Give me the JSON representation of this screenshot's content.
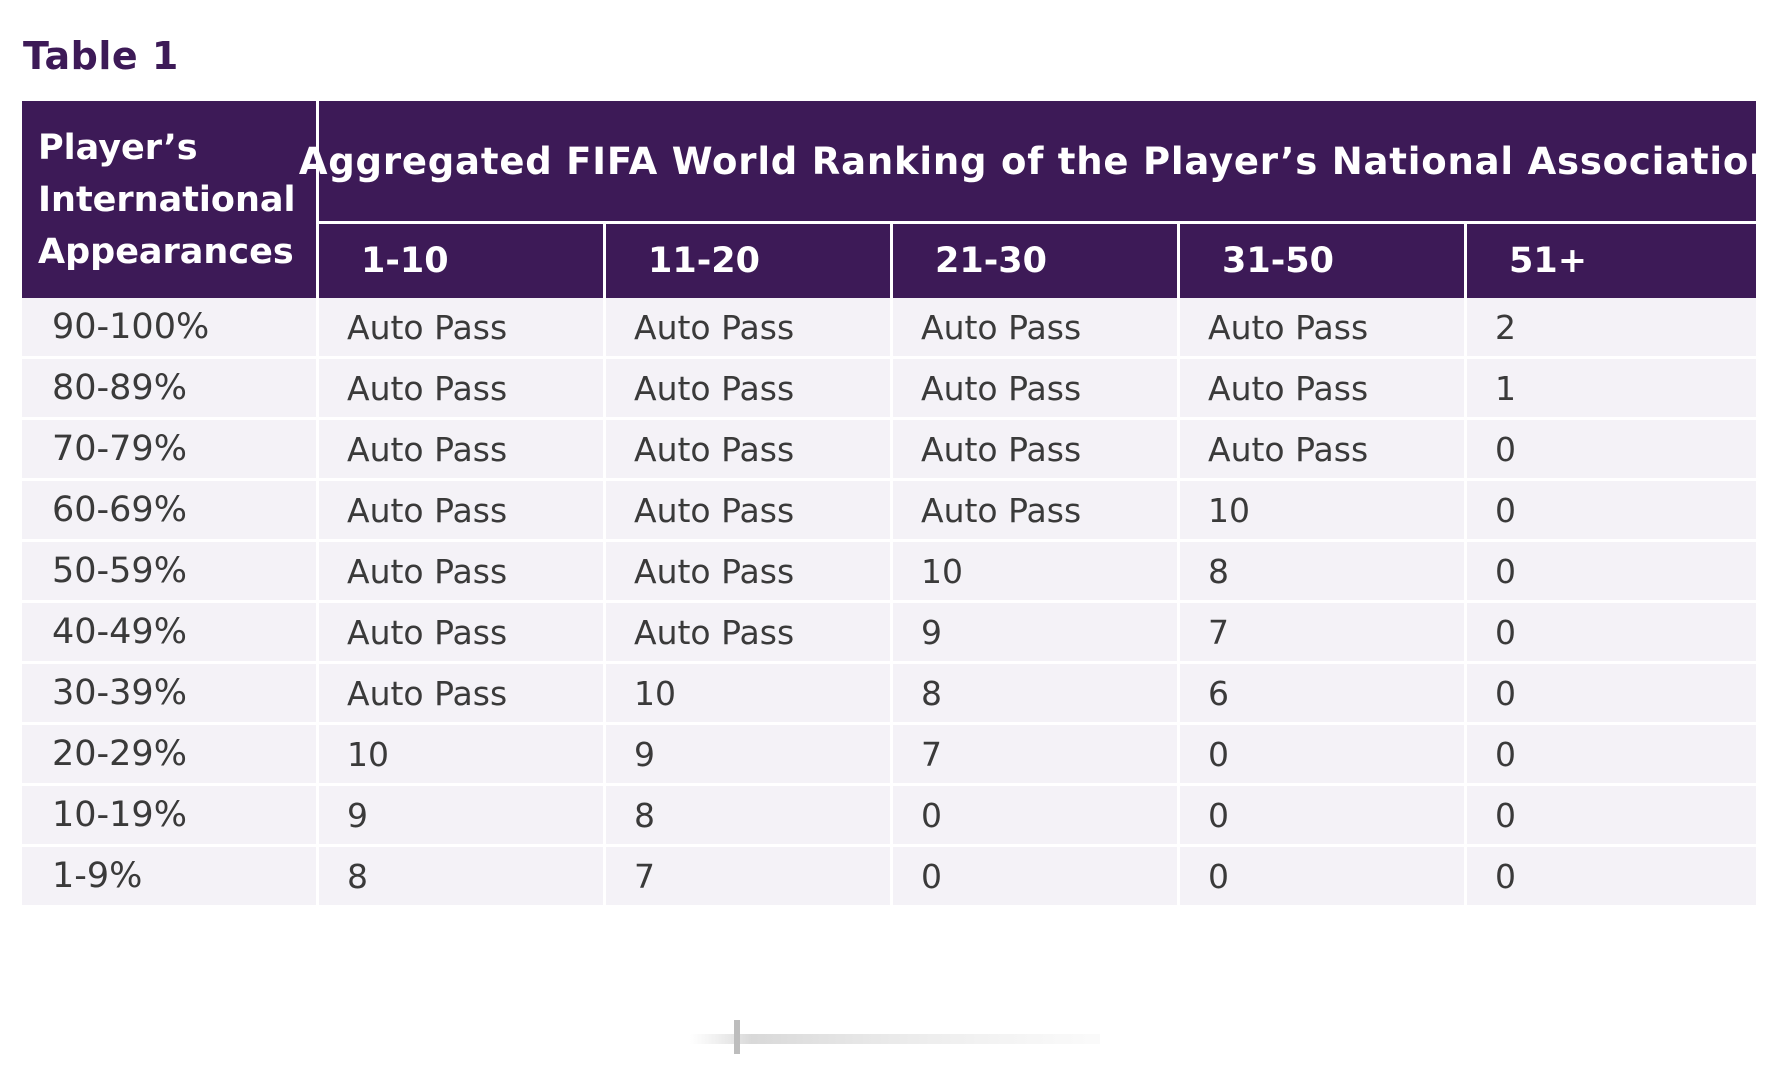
{
  "title": "Table 1",
  "table": {
    "row_header_label": "Player’s\nInternational\nAppearances",
    "column_group_header": "Aggregated FIFA World Ranking of the Player’s National Association",
    "columns": [
      "1-10",
      "11-20",
      "21-30",
      "31-50",
      "51+"
    ],
    "rows": [
      {
        "label": "90-100%",
        "cells": [
          "Auto Pass",
          "Auto Pass",
          "Auto Pass",
          "Auto Pass",
          "2"
        ]
      },
      {
        "label": "80-89%",
        "cells": [
          "Auto Pass",
          "Auto Pass",
          "Auto Pass",
          "Auto Pass",
          "1"
        ]
      },
      {
        "label": "70-79%",
        "cells": [
          "Auto Pass",
          "Auto Pass",
          "Auto Pass",
          "Auto Pass",
          "0"
        ]
      },
      {
        "label": "60-69%",
        "cells": [
          "Auto Pass",
          "Auto Pass",
          "Auto Pass",
          "10",
          "0"
        ]
      },
      {
        "label": "50-59%",
        "cells": [
          "Auto Pass",
          "Auto Pass",
          "10",
          "8",
          "0"
        ]
      },
      {
        "label": "40-49%",
        "cells": [
          "Auto Pass",
          "Auto Pass",
          "9",
          "7",
          "0"
        ]
      },
      {
        "label": "30-39%",
        "cells": [
          "Auto Pass",
          "10",
          "8",
          "6",
          "0"
        ]
      },
      {
        "label": "20-29%",
        "cells": [
          "10",
          "9",
          "7",
          "0",
          "0"
        ]
      },
      {
        "label": "10-19%",
        "cells": [
          "9",
          "8",
          "0",
          "0",
          "0"
        ]
      },
      {
        "label": "1-9%",
        "cells": [
          "8",
          "7",
          "0",
          "0",
          "0"
        ]
      }
    ]
  },
  "colors": {
    "header_background": "#3d1a57",
    "header_text": "#ffffff",
    "body_background": "#f4f2f7",
    "body_text": "#3a3a3a",
    "title_text": "#3d1a57"
  }
}
